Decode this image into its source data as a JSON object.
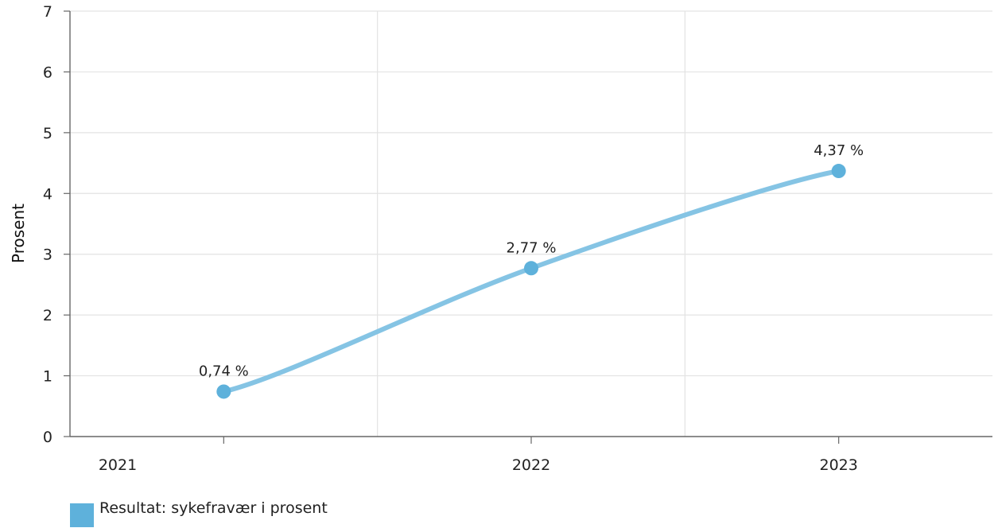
{
  "chart_data": {
    "type": "line",
    "ylabel": "Prosent",
    "ylim": [
      0,
      7
    ],
    "yticks": [
      "0",
      "1",
      "2",
      "3",
      "4",
      "5",
      "6",
      "7"
    ],
    "x_tick_labels": [
      "2021",
      "2022",
      "2023"
    ],
    "series": [
      {
        "name": "Resultat: sykefravær i prosent",
        "color": "#85C4E4",
        "marker_color": "#5EB1DB",
        "points": [
          {
            "x": 2021.5,
            "y": 0.74,
            "label": "0,74 %"
          },
          {
            "x": 2022.5,
            "y": 2.77,
            "label": "2,77 %"
          },
          {
            "x": 2023.5,
            "y": 4.37,
            "label": "4,37 %"
          }
        ]
      }
    ],
    "grid": true,
    "legend_position": "bottom-left",
    "legend_swatch_color": "#5EB1DB"
  }
}
